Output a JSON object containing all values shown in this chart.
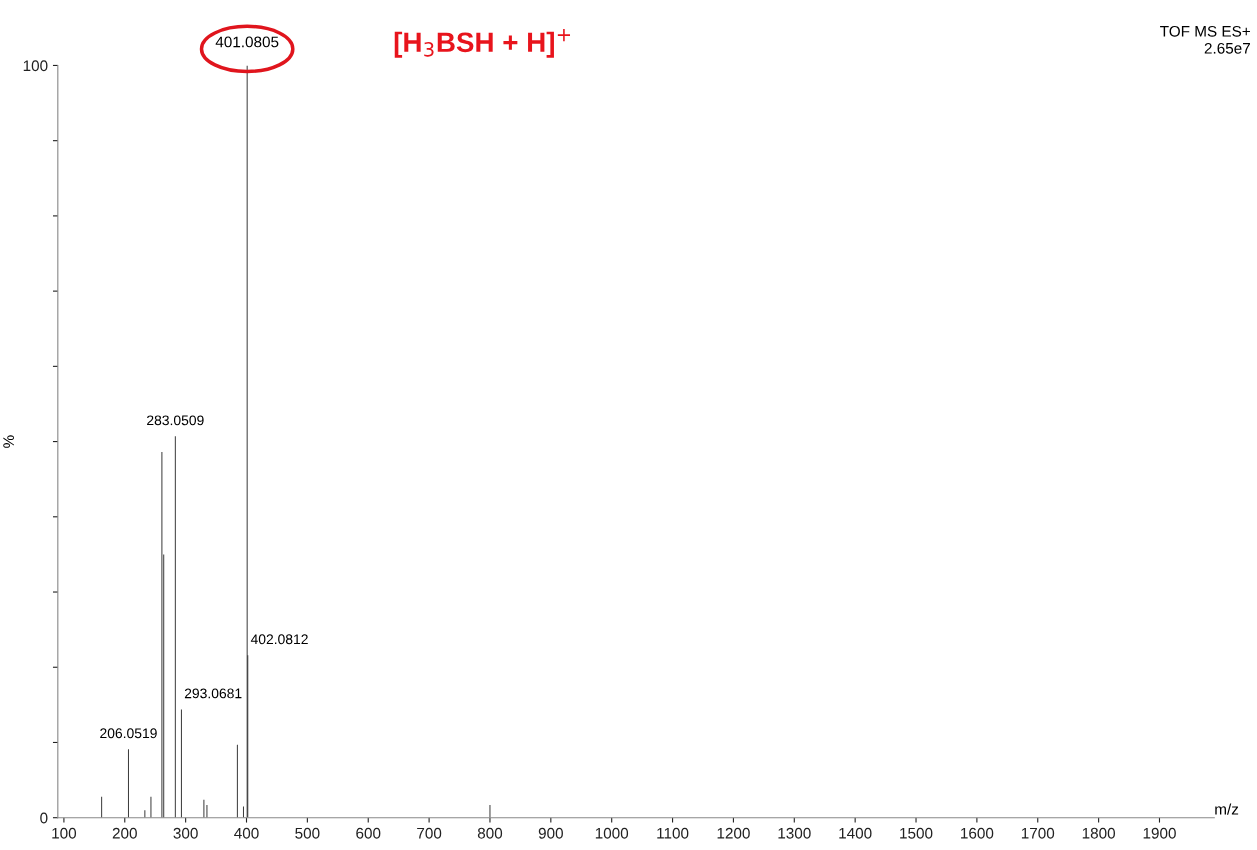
{
  "chart_data": {
    "type": "bar",
    "xlabel": "m/z",
    "ylabel": "%",
    "x": [
      162,
      206.0519,
      233,
      243,
      261,
      264,
      283.0509,
      293.0681,
      330,
      335,
      385,
      395,
      401.0805,
      402.0812,
      800
    ],
    "series": [
      {
        "color": "#333333",
        "values": [
          2.8,
          9.1,
          1.0,
          2.8,
          48.6,
          35.0,
          50.7,
          14.4,
          2.4,
          1.7,
          9.7,
          1.5,
          100,
          21.6,
          1.7
        ]
      }
    ],
    "xlim": [
      90,
      1990
    ],
    "xticks": [
      100,
      200,
      300,
      400,
      500,
      600,
      700,
      800,
      900,
      1000,
      1100,
      1200,
      1300,
      1400,
      1500,
      1600,
      1700,
      1800,
      1900
    ],
    "ylim": [
      0,
      100
    ],
    "yticks": [
      0,
      {
        "value": 10,
        "label": null
      },
      {
        "value": 20,
        "label": null
      },
      {
        "value": 30,
        "label": null
      },
      {
        "value": 40,
        "label": null
      },
      {
        "value": 50,
        "label": null
      },
      {
        "value": 60,
        "label": null
      },
      {
        "value": 70,
        "label": null
      },
      {
        "value": 80,
        "label": null
      },
      {
        "value": 90,
        "label": null
      },
      100
    ],
    "grid": false,
    "annotations": [
      {
        "text": "401.0805",
        "x": 401.0805,
        "y": 100
      },
      {
        "text": "402.0812",
        "x": 402.0812,
        "y": 21.6
      },
      {
        "text": "283.0509",
        "x": 283.0509,
        "y": 50.7
      },
      {
        "text": "293.0681",
        "x": 293.0681,
        "y": 14.4
      },
      {
        "text": "206.0519",
        "x": 206.0519,
        "y": 9.1
      },
      "[H$_{3}$BSH + H]$^{+}$",
      "TOF MS ES+",
      "2.65e7"
    ]
  }
}
